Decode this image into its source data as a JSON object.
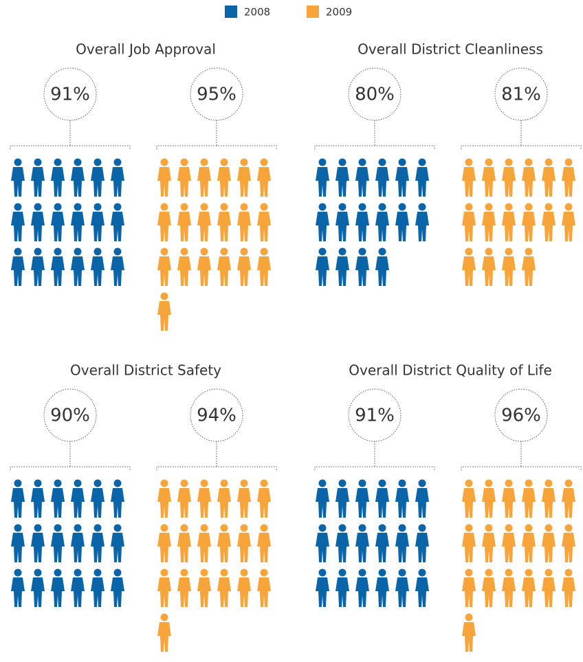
{
  "chart_data": {
    "type": "pictograph",
    "series": [
      {
        "name": "2008",
        "color": "#0a64a8"
      },
      {
        "name": "2009",
        "color": "#f7a53a"
      }
    ],
    "panels": [
      {
        "title": "Overall Job Approval",
        "values": [
          91,
          95
        ],
        "value_labels": [
          "91%",
          "95%"
        ]
      },
      {
        "title": "Overall District Cleanliness",
        "values": [
          80,
          81
        ],
        "value_labels": [
          "80%",
          "81%"
        ]
      },
      {
        "title": "Overall District Safety",
        "values": [
          90,
          94
        ],
        "value_labels": [
          "90%",
          "94%"
        ]
      },
      {
        "title": "Overall District Quality of Life",
        "values": [
          91,
          96
        ],
        "value_labels": [
          "91%",
          "96%"
        ]
      }
    ]
  }
}
